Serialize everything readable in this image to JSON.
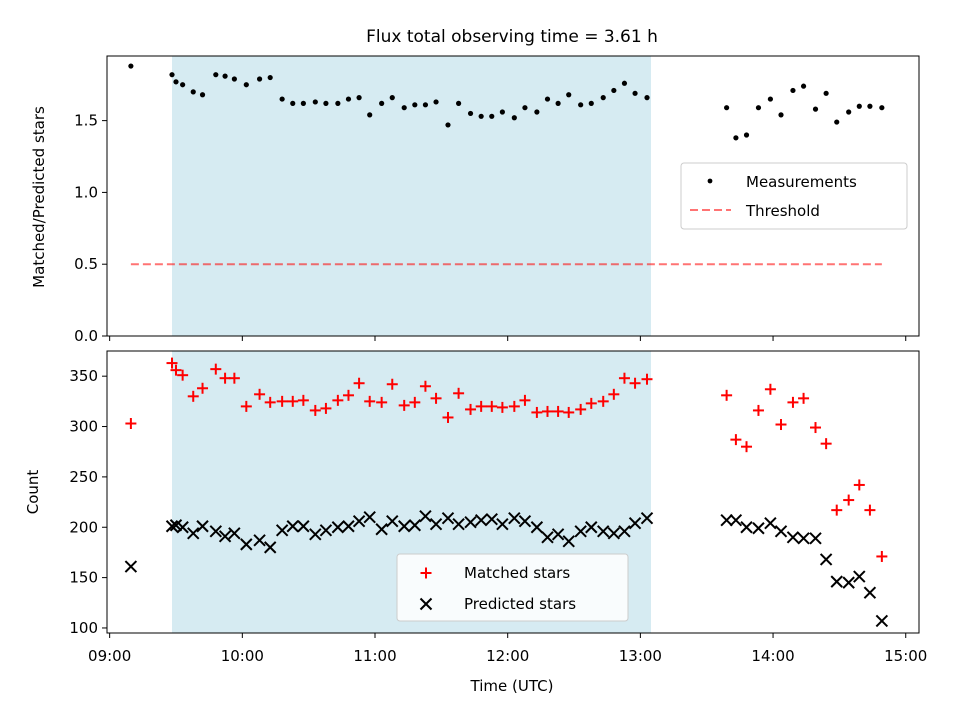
{
  "figure_title": "Flux total observing time = 3.61 h",
  "colors": {
    "shade": "#add8e6",
    "threshold": "#ff0000",
    "measurement": "#000000",
    "matched": "#ff0000",
    "predicted": "#000000"
  },
  "chart_data": [
    {
      "type": "scatter",
      "title": "Flux total observing time = 3.61 h",
      "xlabel": "",
      "ylabel": "Matched/Predicted stars",
      "xlim_hours": [
        8.98,
        15.1
      ],
      "ylim": [
        0,
        1.95
      ],
      "yticks": [
        0,
        0.5,
        1.0,
        1.5
      ],
      "ytick_labels": [
        "0.0",
        "0.5",
        "1.0",
        "1.5"
      ],
      "shaded_interval_hours": [
        9.47,
        13.08
      ],
      "legend": {
        "placement": "center-right",
        "labels": [
          "Measurements",
          "Threshold"
        ]
      },
      "threshold": {
        "name": "Threshold",
        "value": 0.5,
        "x_start": 9.16,
        "x_end": 14.82
      },
      "series": [
        {
          "name": "Measurements",
          "x": [
            9.16,
            9.47,
            9.5,
            9.55,
            9.63,
            9.7,
            9.8,
            9.87,
            9.94,
            10.03,
            10.13,
            10.21,
            10.3,
            10.38,
            10.46,
            10.55,
            10.63,
            10.72,
            10.8,
            10.88,
            10.96,
            11.05,
            11.13,
            11.22,
            11.3,
            11.38,
            11.46,
            11.55,
            11.63,
            11.72,
            11.8,
            11.88,
            11.96,
            12.05,
            12.13,
            12.22,
            12.3,
            12.38,
            12.46,
            12.55,
            12.63,
            12.72,
            12.8,
            12.88,
            12.96,
            13.05,
            13.65,
            13.72,
            13.8,
            13.89,
            13.98,
            14.06,
            14.15,
            14.23,
            14.32,
            14.4,
            14.48,
            14.57,
            14.65,
            14.73,
            14.82
          ],
          "y": [
            1.88,
            1.82,
            1.77,
            1.75,
            1.7,
            1.68,
            1.82,
            1.81,
            1.79,
            1.75,
            1.79,
            1.8,
            1.65,
            1.62,
            1.62,
            1.63,
            1.62,
            1.62,
            1.65,
            1.66,
            1.54,
            1.62,
            1.66,
            1.59,
            1.61,
            1.61,
            1.63,
            1.47,
            1.62,
            1.55,
            1.53,
            1.53,
            1.56,
            1.52,
            1.59,
            1.56,
            1.65,
            1.62,
            1.68,
            1.61,
            1.62,
            1.66,
            1.71,
            1.76,
            1.69,
            1.66,
            1.59,
            1.38,
            1.4,
            1.59,
            1.65,
            1.54,
            1.71,
            1.74,
            1.58,
            1.69,
            1.49,
            1.56,
            1.6,
            1.6,
            1.59
          ]
        }
      ]
    },
    {
      "type": "scatter",
      "title": "",
      "xlabel": "Time (UTC)",
      "ylabel": "Count",
      "xlim_hours": [
        8.98,
        15.1
      ],
      "ylim": [
        95,
        375
      ],
      "yticks": [
        100,
        150,
        200,
        250,
        300,
        350
      ],
      "ytick_labels": [
        "100",
        "150",
        "200",
        "250",
        "300",
        "350"
      ],
      "xticks_hours": [
        9,
        10,
        11,
        12,
        13,
        14,
        15
      ],
      "xtick_labels": [
        "09:00",
        "10:00",
        "11:00",
        "12:00",
        "13:00",
        "14:00",
        "15:00"
      ],
      "shaded_interval_hours": [
        9.47,
        13.08
      ],
      "legend": {
        "placement": "lower-center",
        "labels": [
          "Matched stars",
          "Predicted stars"
        ]
      },
      "series": [
        {
          "name": "Matched stars",
          "marker": "plus",
          "x": [
            9.16,
            9.47,
            9.5,
            9.55,
            9.63,
            9.7,
            9.8,
            9.87,
            9.94,
            10.03,
            10.13,
            10.21,
            10.3,
            10.38,
            10.46,
            10.55,
            10.63,
            10.72,
            10.8,
            10.88,
            10.96,
            11.05,
            11.13,
            11.22,
            11.3,
            11.38,
            11.46,
            11.55,
            11.63,
            11.72,
            11.8,
            11.88,
            11.96,
            12.05,
            12.13,
            12.22,
            12.3,
            12.38,
            12.46,
            12.55,
            12.63,
            12.72,
            12.8,
            12.88,
            12.96,
            13.05,
            13.65,
            13.72,
            13.8,
            13.89,
            13.98,
            14.06,
            14.15,
            14.23,
            14.32,
            14.4,
            14.48,
            14.57,
            14.65,
            14.73,
            14.82
          ],
          "y": [
            303,
            363,
            356,
            351,
            330,
            338,
            357,
            348,
            348,
            320,
            332,
            324,
            325,
            325,
            326,
            316,
            318,
            326,
            331,
            343,
            325,
            324,
            342,
            321,
            324,
            340,
            328,
            309,
            333,
            317,
            320,
            320,
            319,
            320,
            326,
            314,
            315,
            315,
            314,
            317,
            323,
            325,
            332,
            348,
            343,
            347,
            331,
            287,
            280,
            316,
            337,
            302,
            324,
            328,
            299,
            283,
            217,
            227,
            242,
            217,
            171
          ]
        },
        {
          "name": "Predicted stars",
          "marker": "x",
          "x": [
            9.16,
            9.47,
            9.5,
            9.55,
            9.63,
            9.7,
            9.8,
            9.87,
            9.94,
            10.03,
            10.13,
            10.21,
            10.3,
            10.38,
            10.46,
            10.55,
            10.63,
            10.72,
            10.8,
            10.88,
            10.96,
            11.05,
            11.13,
            11.22,
            11.3,
            11.38,
            11.46,
            11.55,
            11.63,
            11.72,
            11.8,
            11.88,
            11.96,
            12.05,
            12.13,
            12.22,
            12.3,
            12.38,
            12.46,
            12.55,
            12.63,
            12.72,
            12.8,
            12.88,
            12.96,
            13.05,
            13.65,
            13.72,
            13.8,
            13.89,
            13.98,
            14.06,
            14.15,
            14.23,
            14.32,
            14.4,
            14.48,
            14.57,
            14.65,
            14.73,
            14.82
          ],
          "y": [
            161,
            201,
            202,
            200,
            194,
            201,
            196,
            191,
            194,
            183,
            187,
            180,
            197,
            201,
            201,
            193,
            197,
            200,
            201,
            206,
            210,
            198,
            206,
            201,
            202,
            211,
            203,
            209,
            203,
            205,
            207,
            208,
            203,
            209,
            206,
            200,
            190,
            193,
            186,
            196,
            200,
            196,
            194,
            196,
            204,
            209,
            207,
            207,
            200,
            199,
            204,
            196,
            190,
            189,
            189,
            168,
            146,
            145,
            151,
            135,
            107
          ]
        }
      ]
    }
  ]
}
